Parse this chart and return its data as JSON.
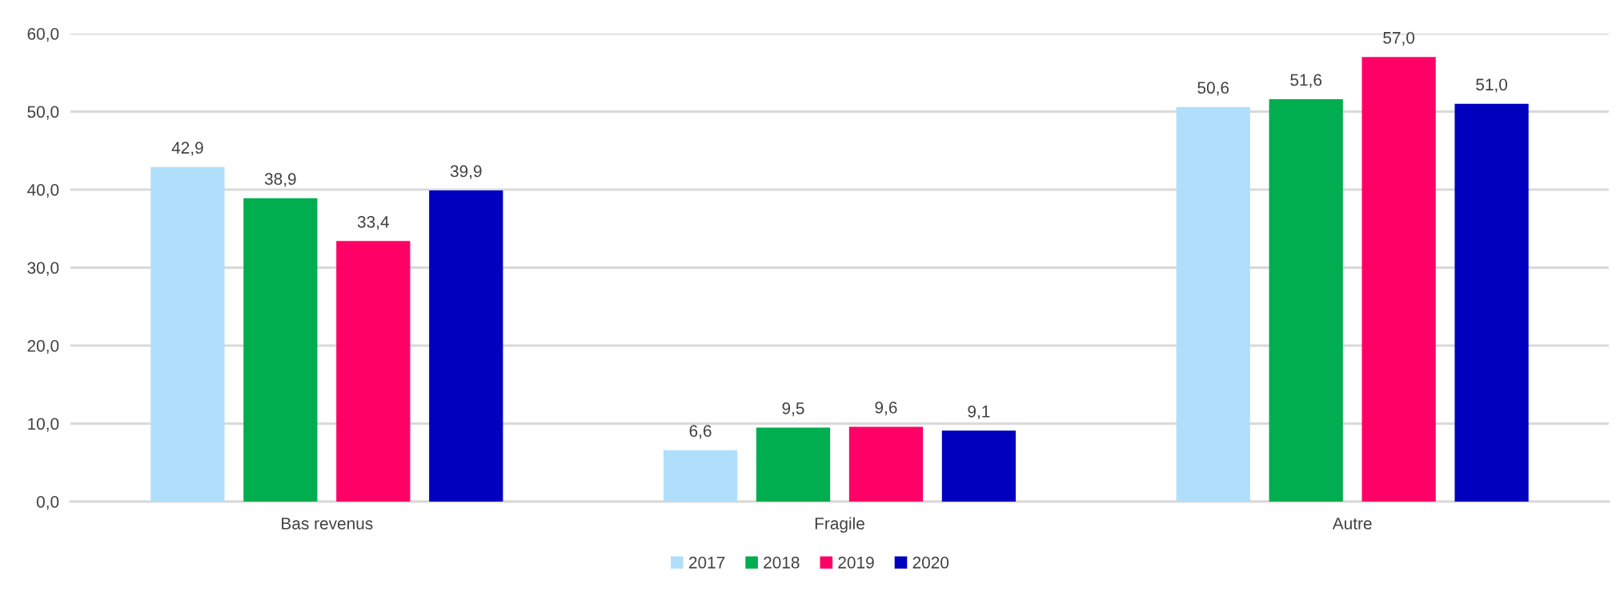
{
  "chart_data": {
    "type": "bar",
    "categories": [
      "Bas revenus",
      "Fragile",
      "Autre"
    ],
    "series": [
      {
        "name": "2017",
        "color": "#b0dffc",
        "values": [
          42.9,
          6.6,
          50.6
        ],
        "value_labels": [
          "42,9",
          "6,6",
          "50,6"
        ]
      },
      {
        "name": "2018",
        "color": "#00ad4f",
        "values": [
          38.9,
          9.5,
          51.6
        ],
        "value_labels": [
          "38,9",
          "9,5",
          "51,6"
        ]
      },
      {
        "name": "2019",
        "color": "#ff0066",
        "values": [
          33.4,
          9.6,
          57.0
        ],
        "value_labels": [
          "33,4",
          "9,6",
          "57,0"
        ]
      },
      {
        "name": "2020",
        "color": "#0000be",
        "values": [
          39.9,
          9.1,
          51.0
        ],
        "value_labels": [
          "39,9",
          "9,1",
          "51,0"
        ]
      }
    ],
    "ylim": [
      0,
      60
    ],
    "yticks": [
      {
        "value": 0,
        "label": "0,0"
      },
      {
        "value": 10,
        "label": "10,0"
      },
      {
        "value": 20,
        "label": "20,0"
      },
      {
        "value": 30,
        "label": "30,0"
      },
      {
        "value": 40,
        "label": "40,0"
      },
      {
        "value": 50,
        "label": "50,0"
      },
      {
        "value": 60,
        "label": "60,0"
      }
    ],
    "grid": "y",
    "legend": "bottom"
  }
}
